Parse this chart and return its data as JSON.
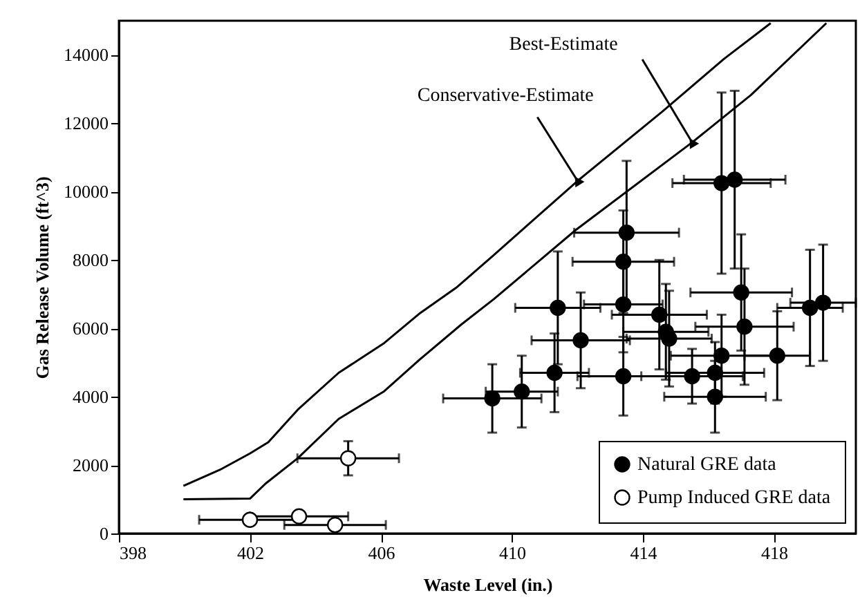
{
  "chart_data": {
    "type": "scatter",
    "xlabel": "Waste Level (in.)",
    "ylabel": "Gas Release Volume (ft^3)",
    "xlim": [
      398,
      420.5
    ],
    "xticks": [
      398,
      402,
      406,
      410,
      414,
      418
    ],
    "ylim": [
      0,
      15000
    ],
    "yticks": [
      0,
      2000,
      4000,
      6000,
      8000,
      10000,
      12000,
      14000
    ],
    "grid": false,
    "legend": "bottom right",
    "annotations": [
      {
        "text": "Conservative-Estimate",
        "x": 412.0,
        "y": 10320
      },
      {
        "text": "Best-Estimate",
        "x": 415.5,
        "y": 11440
      }
    ],
    "series": [
      {
        "name": "Natural GRE data",
        "color": "#000000",
        "marker": "circle",
        "x": [
          409.4,
          410.3,
          411.3,
          411.4,
          412.1,
          413.4,
          413.4,
          413.4,
          413.5,
          414.5,
          414.7,
          414.8,
          415.5,
          416.2,
          416.2,
          416.4,
          416.4,
          416.8,
          417.0,
          417.1,
          418.1,
          419.1,
          419.5
        ],
        "values": [
          3950,
          4150,
          4700,
          6600,
          5650,
          4600,
          6700,
          7950,
          8800,
          6400,
          5900,
          5700,
          4600,
          4700,
          4000,
          5200,
          10250,
          10350,
          7050,
          6050,
          5200,
          6600,
          6750
        ],
        "xerrors": [
          1.5,
          1.1,
          1.05,
          1.3,
          1.5,
          1.4,
          1.2,
          1.55,
          1.6,
          1.45,
          1.3,
          1.3,
          1.55,
          1.5,
          1.55,
          1.55,
          1.5,
          1.55,
          1.55,
          1.5,
          1.0,
          1.0,
          1.0
        ],
        "errors": [
          1000,
          1050,
          1150,
          1650,
          1400,
          1150,
          1400,
          1500,
          2100,
          1600,
          1400,
          1400,
          800,
          900,
          1050,
          1200,
          2650,
          2600,
          1700,
          1700,
          1300,
          1700,
          1700
        ]
      },
      {
        "name": "Pump Induced GRE data",
        "color": "#ffffff",
        "marker": "circle",
        "x": [
          405.0,
          402.0,
          403.5,
          404.6
        ],
        "values": [
          2200,
          400,
          500,
          250
        ],
        "xerrors": [
          1.55,
          1.55,
          1.5,
          1.55
        ],
        "errors": [
          500,
          null,
          null,
          null
        ]
      },
      {
        "color": "#000000",
        "type": "line",
        "x": [
          399.97,
          401.08,
          402.0,
          402.56,
          403.46,
          404.71,
          406.1,
          407.2,
          408.3,
          409.44,
          412.01,
          414.6,
          416.47,
          417.9
        ],
        "values": [
          1390,
          1860,
          2340,
          2670,
          3620,
          4700,
          5570,
          6450,
          7190,
          8140,
          10320,
          12350,
          13880,
          14930
        ]
      },
      {
        "color": "#000000",
        "type": "line",
        "x": [
          399.97,
          402.0,
          402.48,
          403.46,
          404.71,
          406.1,
          407.2,
          408.45,
          409.44,
          411.95,
          415.5,
          417.3,
          419.6
        ],
        "values": [
          1000,
          1020,
          1460,
          2200,
          3350,
          4160,
          5100,
          6110,
          6850,
          8880,
          11440,
          12830,
          14930
        ]
      }
    ]
  }
}
